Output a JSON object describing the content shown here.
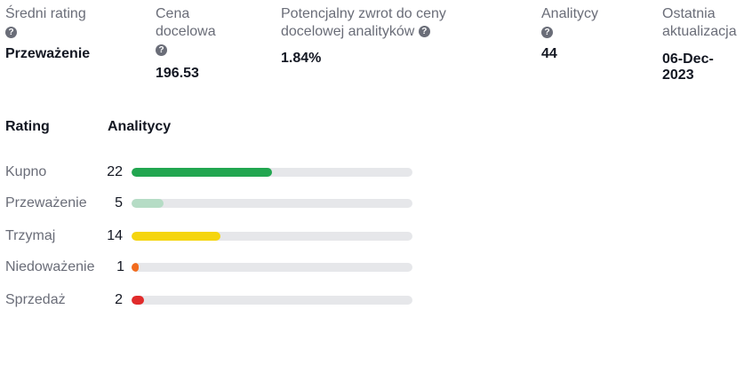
{
  "summary": {
    "avg_rating": {
      "label": "Średni rating",
      "value": "Przeważenie"
    },
    "target_price": {
      "label_line1": "Cena",
      "label_line2": "docelowa",
      "value": "196.53"
    },
    "potential_return": {
      "label_line1": "Potencjalny zwrot do ceny",
      "label_line2": "docelowej analityków",
      "value": "1.84%"
    },
    "analysts": {
      "label": "Analitycy",
      "value": "44"
    },
    "last_update": {
      "label_line1": "Ostatnia",
      "label_line2": "aktualizacja",
      "value_line1": "06-Dec-",
      "value_line2": "2023"
    },
    "help_glyph": "?"
  },
  "breakdown": {
    "rating_header": "Rating",
    "analysts_header": "Analitycy",
    "total": 44,
    "rows": [
      {
        "label": "Kupno",
        "count": "22",
        "fraction": 0.5,
        "color": "#22a650"
      },
      {
        "label": "Przeważenie",
        "count": "5",
        "fraction": 0.114,
        "color": "#b5dcc5"
      },
      {
        "label": "Trzymaj",
        "count": "14",
        "fraction": 0.318,
        "color": "#f5d50f"
      },
      {
        "label": "Niedoważenie",
        "count": "1",
        "fraction": 0.023,
        "color": "#f26b1d"
      },
      {
        "label": "Sprzedaż",
        "count": "2",
        "fraction": 0.045,
        "color": "#e12b2b"
      }
    ]
  }
}
